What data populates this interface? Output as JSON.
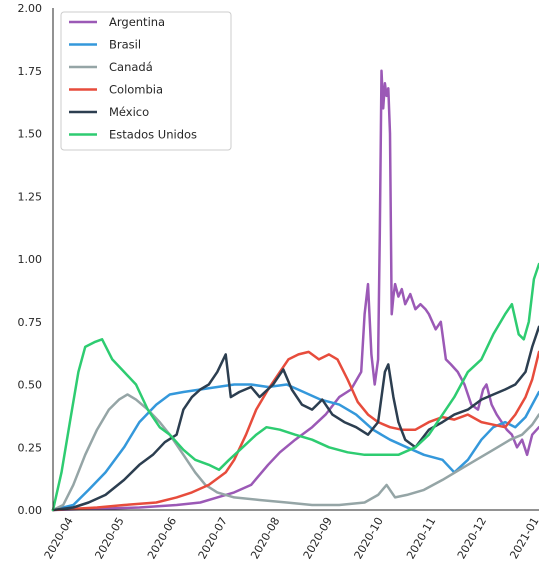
{
  "chart_data": {
    "type": "line",
    "title": "",
    "xlabel": "",
    "ylabel": "",
    "ylim": [
      0,
      2.0
    ],
    "yticks": [
      "0.00",
      "0.25",
      "0.50",
      "0.75",
      "1.00",
      "1.25",
      "1.50",
      "1.75",
      "2.00"
    ],
    "xlim": [
      "2020-03-20",
      "2021-01-01"
    ],
    "xticks": [
      "2020-04",
      "2020-05",
      "2020-06",
      "2020-07",
      "2020-08",
      "2020-09",
      "2020-10",
      "2020-11",
      "2020-12",
      "2021-01"
    ],
    "grid": false,
    "legend_position": "top-left",
    "series": [
      {
        "name": "Argentina",
        "color": "#9b59b6",
        "points": [
          [
            "2020-03-20",
            0.0
          ],
          [
            "2020-04-15",
            0.005
          ],
          [
            "2020-05-10",
            0.01
          ],
          [
            "2020-06-01",
            0.02
          ],
          [
            "2020-06-15",
            0.03
          ],
          [
            "2020-06-25",
            0.05
          ],
          [
            "2020-07-05",
            0.07
          ],
          [
            "2020-07-15",
            0.1
          ],
          [
            "2020-07-25",
            0.18
          ],
          [
            "2020-08-01",
            0.23
          ],
          [
            "2020-08-10",
            0.28
          ],
          [
            "2020-08-20",
            0.33
          ],
          [
            "2020-08-28",
            0.38
          ],
          [
            "2020-09-05",
            0.45
          ],
          [
            "2020-09-12",
            0.48
          ],
          [
            "2020-09-18",
            0.55
          ],
          [
            "2020-09-20",
            0.78
          ],
          [
            "2020-09-22",
            0.9
          ],
          [
            "2020-09-24",
            0.62
          ],
          [
            "2020-09-26",
            0.5
          ],
          [
            "2020-09-28",
            0.6
          ],
          [
            "2020-09-29",
            1.1
          ],
          [
            "2020-09-30",
            1.75
          ],
          [
            "2020-10-01",
            1.6
          ],
          [
            "2020-10-02",
            1.7
          ],
          [
            "2020-10-03",
            1.65
          ],
          [
            "2020-10-04",
            1.68
          ],
          [
            "2020-10-05",
            1.5
          ],
          [
            "2020-10-06",
            0.78
          ],
          [
            "2020-10-07",
            0.85
          ],
          [
            "2020-10-08",
            0.9
          ],
          [
            "2020-10-10",
            0.85
          ],
          [
            "2020-10-12",
            0.88
          ],
          [
            "2020-10-14",
            0.82
          ],
          [
            "2020-10-17",
            0.86
          ],
          [
            "2020-10-20",
            0.8
          ],
          [
            "2020-10-23",
            0.82
          ],
          [
            "2020-10-26",
            0.8
          ],
          [
            "2020-10-28",
            0.78
          ],
          [
            "2020-11-01",
            0.72
          ],
          [
            "2020-11-04",
            0.75
          ],
          [
            "2020-11-07",
            0.6
          ],
          [
            "2020-11-10",
            0.58
          ],
          [
            "2020-11-14",
            0.55
          ],
          [
            "2020-11-18",
            0.5
          ],
          [
            "2020-11-22",
            0.42
          ],
          [
            "2020-11-26",
            0.4
          ],
          [
            "2020-11-29",
            0.48
          ],
          [
            "2020-12-01",
            0.5
          ],
          [
            "2020-12-04",
            0.42
          ],
          [
            "2020-12-07",
            0.38
          ],
          [
            "2020-12-10",
            0.35
          ],
          [
            "2020-12-13",
            0.32
          ],
          [
            "2020-12-16",
            0.3
          ],
          [
            "2020-12-19",
            0.25
          ],
          [
            "2020-12-22",
            0.28
          ],
          [
            "2020-12-25",
            0.22
          ],
          [
            "2020-12-28",
            0.3
          ],
          [
            "2021-01-01",
            0.33
          ]
        ]
      },
      {
        "name": "Brasil",
        "color": "#3498db",
        "points": [
          [
            "2020-03-20",
            0.0
          ],
          [
            "2020-04-01",
            0.02
          ],
          [
            "2020-04-10",
            0.08
          ],
          [
            "2020-04-20",
            0.15
          ],
          [
            "2020-05-01",
            0.25
          ],
          [
            "2020-05-10",
            0.35
          ],
          [
            "2020-05-20",
            0.42
          ],
          [
            "2020-05-28",
            0.46
          ],
          [
            "2020-06-05",
            0.47
          ],
          [
            "2020-06-15",
            0.48
          ],
          [
            "2020-06-25",
            0.49
          ],
          [
            "2020-07-05",
            0.5
          ],
          [
            "2020-07-15",
            0.5
          ],
          [
            "2020-07-25",
            0.49
          ],
          [
            "2020-08-05",
            0.5
          ],
          [
            "2020-08-15",
            0.47
          ],
          [
            "2020-08-25",
            0.44
          ],
          [
            "2020-09-05",
            0.42
          ],
          [
            "2020-09-15",
            0.38
          ],
          [
            "2020-09-25",
            0.32
          ],
          [
            "2020-10-05",
            0.28
          ],
          [
            "2020-10-15",
            0.25
          ],
          [
            "2020-10-25",
            0.22
          ],
          [
            "2020-11-05",
            0.2
          ],
          [
            "2020-11-12",
            0.15
          ],
          [
            "2020-11-20",
            0.2
          ],
          [
            "2020-11-28",
            0.28
          ],
          [
            "2020-12-05",
            0.33
          ],
          [
            "2020-12-12",
            0.35
          ],
          [
            "2020-12-18",
            0.33
          ],
          [
            "2020-12-24",
            0.37
          ],
          [
            "2020-12-28",
            0.42
          ],
          [
            "2021-01-01",
            0.47
          ]
        ]
      },
      {
        "name": "Canadá",
        "color": "#95a5a6",
        "points": [
          [
            "2020-03-20",
            0.0
          ],
          [
            "2020-03-26",
            0.02
          ],
          [
            "2020-04-01",
            0.1
          ],
          [
            "2020-04-08",
            0.22
          ],
          [
            "2020-04-15",
            0.32
          ],
          [
            "2020-04-22",
            0.4
          ],
          [
            "2020-04-28",
            0.44
          ],
          [
            "2020-05-03",
            0.46
          ],
          [
            "2020-05-08",
            0.44
          ],
          [
            "2020-05-15",
            0.4
          ],
          [
            "2020-05-22",
            0.35
          ],
          [
            "2020-05-28",
            0.3
          ],
          [
            "2020-06-05",
            0.22
          ],
          [
            "2020-06-12",
            0.15
          ],
          [
            "2020-06-18",
            0.1
          ],
          [
            "2020-06-25",
            0.07
          ],
          [
            "2020-07-05",
            0.05
          ],
          [
            "2020-07-20",
            0.04
          ],
          [
            "2020-08-05",
            0.03
          ],
          [
            "2020-08-20",
            0.02
          ],
          [
            "2020-09-05",
            0.02
          ],
          [
            "2020-09-20",
            0.03
          ],
          [
            "2020-09-28",
            0.06
          ],
          [
            "2020-10-03",
            0.1
          ],
          [
            "2020-10-08",
            0.05
          ],
          [
            "2020-10-15",
            0.06
          ],
          [
            "2020-10-25",
            0.08
          ],
          [
            "2020-11-05",
            0.12
          ],
          [
            "2020-11-15",
            0.16
          ],
          [
            "2020-11-25",
            0.2
          ],
          [
            "2020-12-05",
            0.24
          ],
          [
            "2020-12-15",
            0.28
          ],
          [
            "2020-12-22",
            0.3
          ],
          [
            "2020-12-28",
            0.34
          ],
          [
            "2021-01-01",
            0.38
          ]
        ]
      },
      {
        "name": "Colombia",
        "color": "#e74c3c",
        "points": [
          [
            "2020-03-20",
            0.0
          ],
          [
            "2020-04-15",
            0.01
          ],
          [
            "2020-05-01",
            0.02
          ],
          [
            "2020-05-20",
            0.03
          ],
          [
            "2020-06-01",
            0.05
          ],
          [
            "2020-06-10",
            0.07
          ],
          [
            "2020-06-20",
            0.1
          ],
          [
            "2020-06-30",
            0.15
          ],
          [
            "2020-07-05",
            0.2
          ],
          [
            "2020-07-12",
            0.3
          ],
          [
            "2020-07-18",
            0.4
          ],
          [
            "2020-07-25",
            0.48
          ],
          [
            "2020-08-01",
            0.55
          ],
          [
            "2020-08-06",
            0.6
          ],
          [
            "2020-08-12",
            0.62
          ],
          [
            "2020-08-18",
            0.63
          ],
          [
            "2020-08-24",
            0.6
          ],
          [
            "2020-08-30",
            0.62
          ],
          [
            "2020-09-04",
            0.6
          ],
          [
            "2020-09-10",
            0.52
          ],
          [
            "2020-09-16",
            0.43
          ],
          [
            "2020-09-22",
            0.38
          ],
          [
            "2020-09-28",
            0.35
          ],
          [
            "2020-10-05",
            0.33
          ],
          [
            "2020-10-12",
            0.32
          ],
          [
            "2020-10-20",
            0.32
          ],
          [
            "2020-10-28",
            0.35
          ],
          [
            "2020-11-05",
            0.37
          ],
          [
            "2020-11-12",
            0.36
          ],
          [
            "2020-11-20",
            0.38
          ],
          [
            "2020-11-28",
            0.35
          ],
          [
            "2020-12-05",
            0.34
          ],
          [
            "2020-12-12",
            0.33
          ],
          [
            "2020-12-18",
            0.38
          ],
          [
            "2020-12-24",
            0.45
          ],
          [
            "2020-12-28",
            0.52
          ],
          [
            "2021-01-01",
            0.63
          ]
        ]
      },
      {
        "name": "México",
        "color": "#2c3e50",
        "points": [
          [
            "2020-03-20",
            0.0
          ],
          [
            "2020-04-01",
            0.01
          ],
          [
            "2020-04-10",
            0.03
          ],
          [
            "2020-04-20",
            0.06
          ],
          [
            "2020-05-01",
            0.12
          ],
          [
            "2020-05-10",
            0.18
          ],
          [
            "2020-05-18",
            0.22
          ],
          [
            "2020-05-25",
            0.27
          ],
          [
            "2020-06-01",
            0.3
          ],
          [
            "2020-06-05",
            0.4
          ],
          [
            "2020-06-10",
            0.45
          ],
          [
            "2020-06-15",
            0.48
          ],
          [
            "2020-06-20",
            0.5
          ],
          [
            "2020-06-25",
            0.55
          ],
          [
            "2020-06-30",
            0.62
          ],
          [
            "2020-07-03",
            0.45
          ],
          [
            "2020-07-08",
            0.47
          ],
          [
            "2020-07-15",
            0.49
          ],
          [
            "2020-07-20",
            0.45
          ],
          [
            "2020-07-28",
            0.5
          ],
          [
            "2020-08-03",
            0.56
          ],
          [
            "2020-08-08",
            0.48
          ],
          [
            "2020-08-14",
            0.42
          ],
          [
            "2020-08-20",
            0.4
          ],
          [
            "2020-08-26",
            0.44
          ],
          [
            "2020-09-01",
            0.38
          ],
          [
            "2020-09-08",
            0.35
          ],
          [
            "2020-09-15",
            0.33
          ],
          [
            "2020-09-22",
            0.3
          ],
          [
            "2020-09-28",
            0.35
          ],
          [
            "2020-10-02",
            0.55
          ],
          [
            "2020-10-04",
            0.58
          ],
          [
            "2020-10-07",
            0.45
          ],
          [
            "2020-10-10",
            0.35
          ],
          [
            "2020-10-14",
            0.28
          ],
          [
            "2020-10-20",
            0.25
          ],
          [
            "2020-10-28",
            0.32
          ],
          [
            "2020-11-05",
            0.35
          ],
          [
            "2020-11-12",
            0.38
          ],
          [
            "2020-11-20",
            0.4
          ],
          [
            "2020-11-28",
            0.44
          ],
          [
            "2020-12-05",
            0.46
          ],
          [
            "2020-12-12",
            0.48
          ],
          [
            "2020-12-18",
            0.5
          ],
          [
            "2020-12-24",
            0.55
          ],
          [
            "2020-12-28",
            0.65
          ],
          [
            "2021-01-01",
            0.73
          ]
        ]
      },
      {
        "name": "Estados Unidos",
        "color": "#2ecc71",
        "points": [
          [
            "2020-03-20",
            0.0
          ],
          [
            "2020-03-25",
            0.15
          ],
          [
            "2020-03-30",
            0.35
          ],
          [
            "2020-04-04",
            0.55
          ],
          [
            "2020-04-08",
            0.65
          ],
          [
            "2020-04-14",
            0.67
          ],
          [
            "2020-04-18",
            0.68
          ],
          [
            "2020-04-24",
            0.6
          ],
          [
            "2020-05-01",
            0.55
          ],
          [
            "2020-05-08",
            0.5
          ],
          [
            "2020-05-15",
            0.4
          ],
          [
            "2020-05-22",
            0.33
          ],
          [
            "2020-05-28",
            0.3
          ],
          [
            "2020-06-05",
            0.24
          ],
          [
            "2020-06-12",
            0.2
          ],
          [
            "2020-06-20",
            0.18
          ],
          [
            "2020-06-26",
            0.16
          ],
          [
            "2020-07-02",
            0.2
          ],
          [
            "2020-07-10",
            0.25
          ],
          [
            "2020-07-18",
            0.3
          ],
          [
            "2020-07-24",
            0.33
          ],
          [
            "2020-08-01",
            0.32
          ],
          [
            "2020-08-10",
            0.3
          ],
          [
            "2020-08-20",
            0.28
          ],
          [
            "2020-08-30",
            0.25
          ],
          [
            "2020-09-10",
            0.23
          ],
          [
            "2020-09-20",
            0.22
          ],
          [
            "2020-09-30",
            0.22
          ],
          [
            "2020-10-10",
            0.22
          ],
          [
            "2020-10-20",
            0.25
          ],
          [
            "2020-10-28",
            0.3
          ],
          [
            "2020-11-05",
            0.38
          ],
          [
            "2020-11-12",
            0.45
          ],
          [
            "2020-11-20",
            0.55
          ],
          [
            "2020-11-28",
            0.6
          ],
          [
            "2020-12-05",
            0.7
          ],
          [
            "2020-12-12",
            0.78
          ],
          [
            "2020-12-16",
            0.82
          ],
          [
            "2020-12-20",
            0.7
          ],
          [
            "2020-12-23",
            0.68
          ],
          [
            "2020-12-26",
            0.75
          ],
          [
            "2020-12-29",
            0.92
          ],
          [
            "2021-01-01",
            0.98
          ]
        ]
      }
    ]
  }
}
